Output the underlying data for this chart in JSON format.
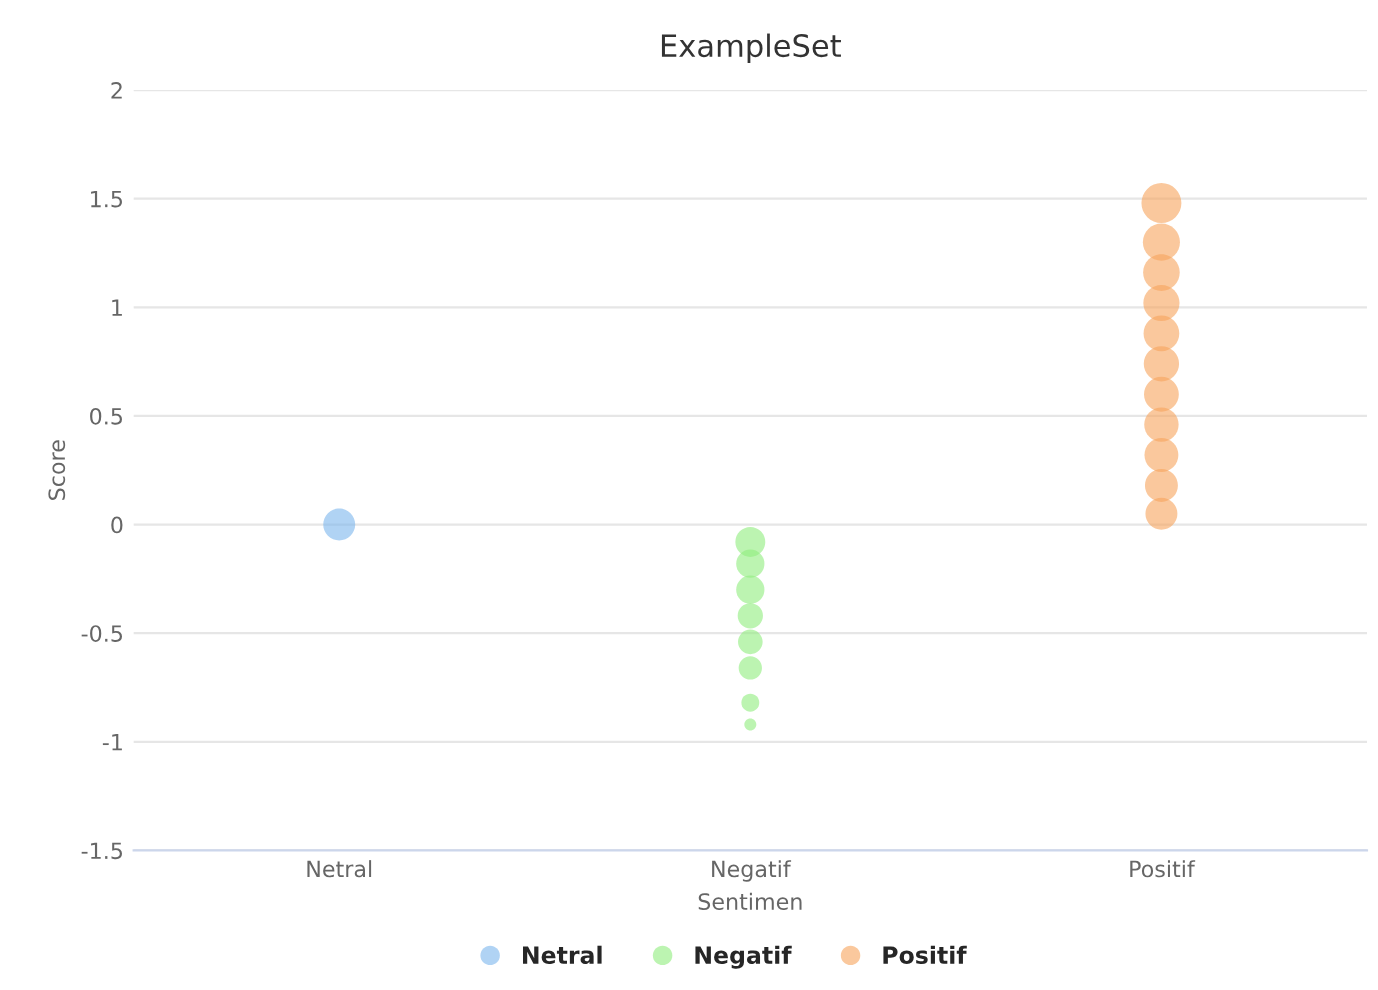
{
  "chart_data": {
    "type": "bubble",
    "title": "ExampleSet",
    "xlabel": "Sentimen",
    "ylabel": "Score",
    "categories": [
      "Netral",
      "Negatif",
      "Positif"
    ],
    "series": [
      {
        "name": "Netral",
        "color": "#7cb5ec",
        "x": [
          "Netral"
        ],
        "values": [
          0
        ],
        "sizes": [
          0.64
        ]
      },
      {
        "name": "Negatif",
        "color": "#90ed7d",
        "x": [
          "Negatif",
          "Negatif",
          "Negatif",
          "Negatif",
          "Negatif",
          "Negatif",
          "Negatif",
          "Negatif"
        ],
        "values": [
          -0.08,
          -0.18,
          -0.3,
          -0.42,
          -0.54,
          -0.66,
          -0.82,
          -0.92
        ],
        "sizes": [
          0.56,
          0.5,
          0.5,
          0.4,
          0.38,
          0.34,
          0.2,
          0.09
        ]
      },
      {
        "name": "Positif",
        "color": "#f7a35c",
        "x": [
          "Positif",
          "Positif",
          "Positif",
          "Positif",
          "Positif",
          "Positif",
          "Positif",
          "Positif",
          "Positif",
          "Positif",
          "Positif"
        ],
        "values": [
          0.05,
          0.18,
          0.32,
          0.46,
          0.6,
          0.74,
          0.88,
          1.02,
          1.16,
          1.3,
          1.48
        ],
        "sizes": [
          0.64,
          0.68,
          0.72,
          0.74,
          0.76,
          0.78,
          0.8,
          0.82,
          0.84,
          0.86,
          1
        ]
      }
    ],
    "ylim": [
      -1.5,
      2
    ],
    "yticks": [
      -1.5,
      -1,
      -0.5,
      0,
      0.5,
      1,
      1.5,
      2
    ],
    "grid": "y",
    "legend": "bottom"
  }
}
